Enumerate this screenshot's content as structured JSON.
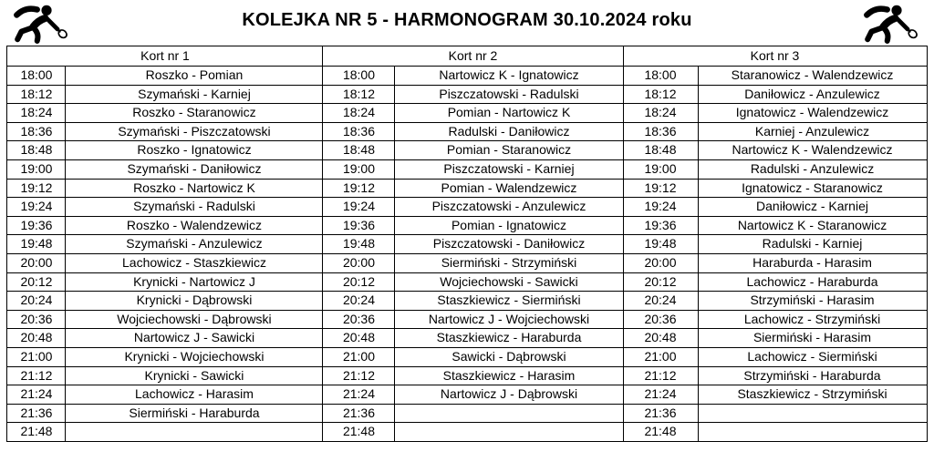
{
  "title": "KOLEJKA NR 5 - HARMONOGRAM 30.10.2024 roku",
  "icons": {
    "left": "squash-player-icon",
    "right": "squash-player-icon"
  },
  "colors": {
    "text": "#000000",
    "border": "#000000",
    "background": "#ffffff"
  },
  "table": {
    "courts": [
      {
        "header": "Kort nr 1",
        "matches": [
          [
            "18:00",
            "Roszko - Pomian"
          ],
          [
            "18:12",
            "Szymański - Karniej"
          ],
          [
            "18:24",
            "Roszko - Staranowicz"
          ],
          [
            "18:36",
            "Szymański - Piszczatowski"
          ],
          [
            "18:48",
            "Roszko - Ignatowicz"
          ],
          [
            "19:00",
            "Szymański - Daniłowicz"
          ],
          [
            "19:12",
            "Roszko - Nartowicz K"
          ],
          [
            "19:24",
            "Szymański - Radulski"
          ],
          [
            "19:36",
            "Roszko - Walendzewicz"
          ],
          [
            "19:48",
            "Szymański - Anzulewicz"
          ],
          [
            "20:00",
            "Lachowicz - Staszkiewicz"
          ],
          [
            "20:12",
            "Krynicki - Nartowicz J"
          ],
          [
            "20:24",
            "Krynicki - Dąbrowski"
          ],
          [
            "20:36",
            "Wojciechowski - Dąbrowski"
          ],
          [
            "20:48",
            "Nartowicz J - Sawicki"
          ],
          [
            "21:00",
            "Krynicki - Wojciechowski"
          ],
          [
            "21:12",
            "Krynicki - Sawicki"
          ],
          [
            "21:24",
            "Lachowicz - Harasim"
          ],
          [
            "21:36",
            "Siermiński - Haraburda"
          ],
          [
            "21:48",
            ""
          ]
        ]
      },
      {
        "header": "Kort nr 2",
        "matches": [
          [
            "18:00",
            "Nartowicz K - Ignatowicz"
          ],
          [
            "18:12",
            "Piszczatowski - Radulski"
          ],
          [
            "18:24",
            "Pomian - Nartowicz K"
          ],
          [
            "18:36",
            "Radulski - Daniłowicz"
          ],
          [
            "18:48",
            "Pomian - Staranowicz"
          ],
          [
            "19:00",
            "Piszczatowski - Karniej"
          ],
          [
            "19:12",
            "Pomian - Walendzewicz"
          ],
          [
            "19:24",
            "Piszczatowski - Anzulewicz"
          ],
          [
            "19:36",
            "Pomian - Ignatowicz"
          ],
          [
            "19:48",
            "Piszczatowski - Daniłowicz"
          ],
          [
            "20:00",
            "Siermiński - Strzymiński"
          ],
          [
            "20:12",
            "Wojciechowski - Sawicki"
          ],
          [
            "20:24",
            "Staszkiewicz - Siermiński"
          ],
          [
            "20:36",
            "Nartowicz J - Wojciechowski"
          ],
          [
            "20:48",
            "Staszkiewicz - Haraburda"
          ],
          [
            "21:00",
            "Sawicki - Dąbrowski"
          ],
          [
            "21:12",
            "Staszkiewicz - Harasim"
          ],
          [
            "21:24",
            "Nartowicz J - Dąbrowski"
          ],
          [
            "21:36",
            ""
          ],
          [
            "21:48",
            ""
          ]
        ]
      },
      {
        "header": "Kort nr 3",
        "matches": [
          [
            "18:00",
            "Staranowicz - Walendzewicz"
          ],
          [
            "18:12",
            "Daniłowicz - Anzulewicz"
          ],
          [
            "18:24",
            "Ignatowicz - Walendzewicz"
          ],
          [
            "18:36",
            "Karniej - Anzulewicz"
          ],
          [
            "18:48",
            "Nartowicz K - Walendzewicz"
          ],
          [
            "19:00",
            "Radulski - Anzulewicz"
          ],
          [
            "19:12",
            "Ignatowicz - Staranowicz"
          ],
          [
            "19:24",
            "Daniłowicz - Karniej"
          ],
          [
            "19:36",
            "Nartowicz K - Staranowicz"
          ],
          [
            "19:48",
            "Radulski - Karniej"
          ],
          [
            "20:00",
            "Haraburda - Harasim"
          ],
          [
            "20:12",
            "Lachowicz - Haraburda"
          ],
          [
            "20:24",
            "Strzymiński - Harasim"
          ],
          [
            "20:36",
            "Lachowicz - Strzymiński"
          ],
          [
            "20:48",
            "Siermiński - Harasim"
          ],
          [
            "21:00",
            "Lachowicz - Siermiński"
          ],
          [
            "21:12",
            "Strzymiński - Haraburda"
          ],
          [
            "21:24",
            "Staszkiewicz - Strzymiński"
          ],
          [
            "21:36",
            ""
          ],
          [
            "21:48",
            ""
          ]
        ]
      }
    ]
  }
}
